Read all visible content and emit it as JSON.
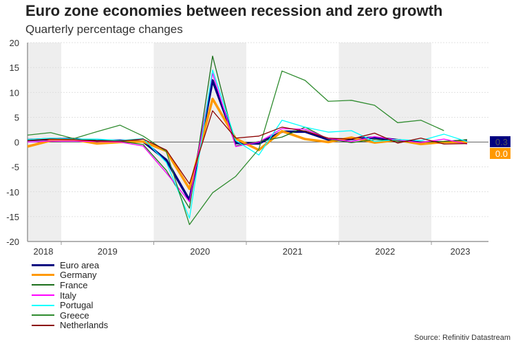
{
  "title": "Euro zone economies between recession and zero growth",
  "subtitle": "Quarterly percentage changes",
  "source": "Source: Refinitiv Datastream",
  "chart_data": {
    "type": "line",
    "title": "Euro zone economies between recession and zero growth",
    "subtitle": "Quarterly percentage changes",
    "ylim": [
      -20,
      20
    ],
    "yticks": [
      -20,
      -15,
      -10,
      -5,
      0,
      5,
      10,
      15,
      20
    ],
    "year_labels": [
      "2018",
      "2019",
      "2020",
      "2021",
      "2022",
      "2023"
    ],
    "x": [
      "2018Q3",
      "2018Q4",
      "2019Q1",
      "2019Q2",
      "2019Q3",
      "2019Q4",
      "2020Q1",
      "2020Q2",
      "2020Q3",
      "2020Q4",
      "2021Q1",
      "2021Q2",
      "2021Q3",
      "2021Q4",
      "2022Q1",
      "2022Q2",
      "2022Q3",
      "2022Q4",
      "2023Q1",
      "2023Q2"
    ],
    "shaded_years": [
      "2018",
      "2020",
      "2022"
    ],
    "grid": true,
    "legend_position": "bottom-left",
    "series": [
      {
        "name": "Euro area",
        "color": "#000080",
        "width": 3.5,
        "values": [
          0.4,
          0.6,
          0.6,
          0.2,
          0.3,
          0.1,
          -3.6,
          -11.7,
          12.4,
          -0.2,
          -0.3,
          2.1,
          2.1,
          0.5,
          0.6,
          0.9,
          0.4,
          -0.1,
          0.0,
          0.3
        ],
        "end_label": "0.3"
      },
      {
        "name": "Germany",
        "color": "#ff9900",
        "width": 3.5,
        "values": [
          -0.9,
          0.3,
          0.5,
          -0.3,
          0.0,
          0.1,
          -1.8,
          -9.4,
          8.7,
          0.7,
          -1.6,
          2.2,
          0.6,
          0.0,
          0.9,
          -0.1,
          0.4,
          -0.4,
          0.0,
          0.0
        ],
        "end_label": "0.0"
      },
      {
        "name": "France",
        "color": "#1a6e1a",
        "width": 1.3,
        "values": [
          0.5,
          0.7,
          0.6,
          0.3,
          0.2,
          -0.5,
          -5.7,
          -13.3,
          17.3,
          -0.8,
          0.1,
          1.0,
          3.0,
          0.6,
          -0.1,
          0.5,
          0.2,
          0.0,
          0.1,
          0.5
        ]
      },
      {
        "name": "Italy",
        "color": "#ff00ff",
        "width": 1.3,
        "values": [
          0.0,
          0.2,
          0.2,
          0.1,
          0.0,
          -0.8,
          -6.2,
          -12.0,
          13.8,
          -0.9,
          0.0,
          2.7,
          2.6,
          0.7,
          0.1,
          1.1,
          0.4,
          -0.1,
          0.6,
          -0.4
        ]
      },
      {
        "name": "Portugal",
        "color": "#00ffff",
        "width": 1.3,
        "values": [
          0.5,
          0.8,
          0.6,
          0.6,
          0.3,
          0.7,
          -4.1,
          -15.3,
          14.5,
          0.3,
          -2.6,
          4.4,
          3.0,
          2.0,
          2.3,
          0.1,
          0.5,
          0.3,
          1.6,
          0.1
        ]
      },
      {
        "name": "Greece",
        "color": "#2e8b2e",
        "width": 1.3,
        "values": [
          1.4,
          1.9,
          0.7,
          2.1,
          3.4,
          1.2,
          -1.9,
          -16.6,
          -10.2,
          -6.9,
          -1.4,
          14.3,
          12.4,
          8.2,
          8.4,
          7.4,
          3.9,
          4.4,
          2.3,
          null
        ]
      },
      {
        "name": "Netherlands",
        "color": "#8b0000",
        "width": 1.3,
        "values": [
          0.3,
          0.6,
          0.5,
          0.2,
          0.2,
          0.6,
          -1.6,
          -8.4,
          6.3,
          0.8,
          1.2,
          3.0,
          2.2,
          0.8,
          0.6,
          1.8,
          -0.2,
          0.8,
          -0.4,
          -0.3
        ]
      }
    ]
  }
}
